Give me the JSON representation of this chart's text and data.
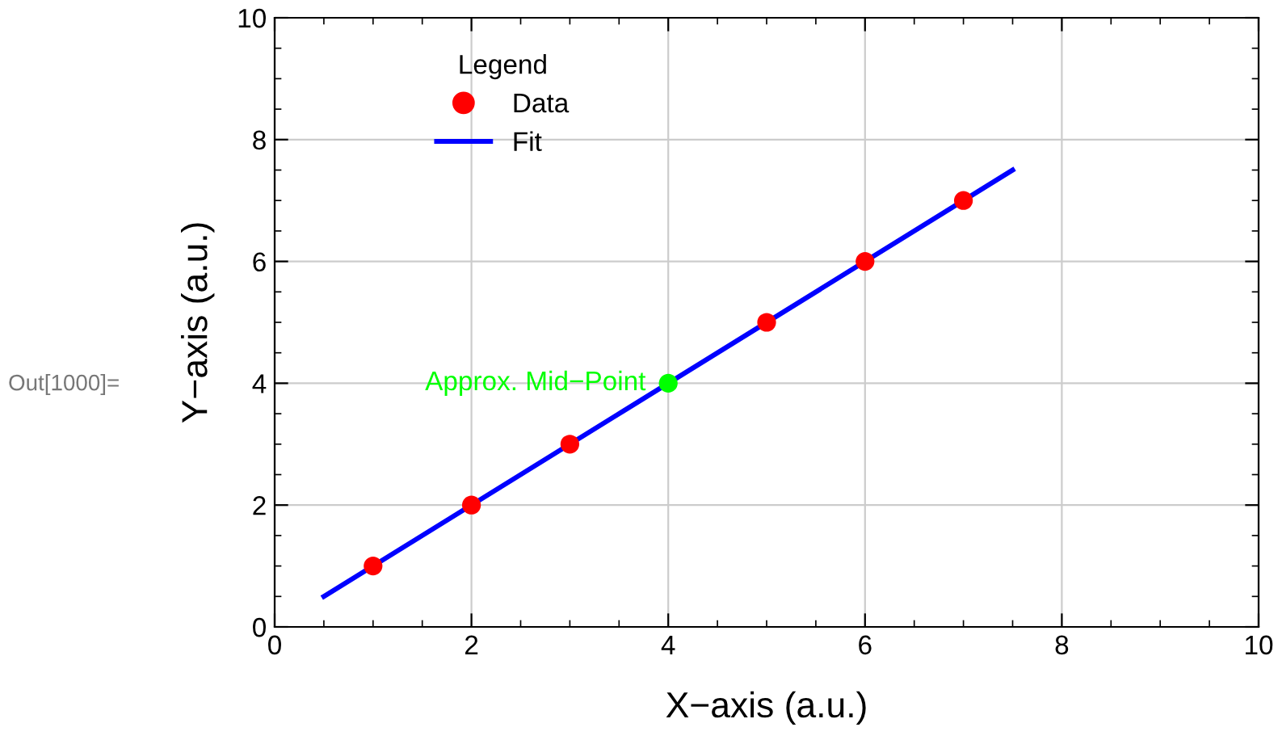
{
  "chart_data": {
    "type": "scatter",
    "xlabel": "X−axis (a.u.)",
    "ylabel": "Y−axis (a.u.)",
    "legend_title": "Legend",
    "series": [
      {
        "name": "Data",
        "x": [
          1,
          2,
          3,
          4,
          5,
          6,
          7
        ],
        "values": [
          1,
          2,
          3,
          4,
          5,
          6,
          7
        ],
        "colors": [
          "#ff0000",
          "#ff0000",
          "#ff0000",
          "#00ff00",
          "#ff0000",
          "#ff0000",
          "#ff0000"
        ],
        "color": "#ff0000",
        "marker": "circle"
      },
      {
        "name": "Fit",
        "type": "line",
        "x": [
          0.5,
          7.5
        ],
        "values": [
          0.5,
          7.5
        ],
        "color": "#0000ff",
        "line_style": "solid",
        "marker": "none"
      }
    ],
    "annotations": [
      {
        "text": "Approx. Mid−Point",
        "x": 4,
        "y": 4
      },
      "Out[1000]="
    ],
    "xlim": [
      0,
      10
    ],
    "ylim": [
      0,
      10
    ],
    "xticks": [
      0,
      2,
      4,
      6,
      8,
      10
    ],
    "yticks": [
      0,
      2,
      4,
      6,
      8,
      10
    ],
    "grid": true,
    "legend": "top left"
  }
}
